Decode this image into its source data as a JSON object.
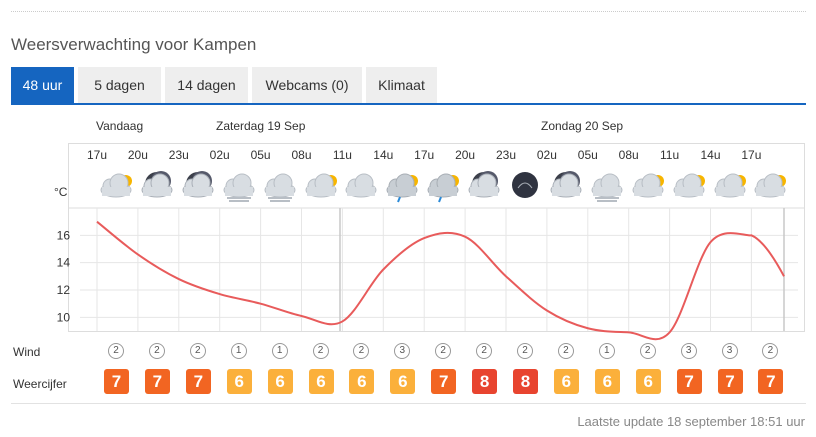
{
  "title": "Weersverwachting voor Kampen",
  "tabs": [
    {
      "label": "48 uur",
      "active": true
    },
    {
      "label": "5 dagen",
      "active": false
    },
    {
      "label": "14 dagen",
      "active": false
    },
    {
      "label": "Webcams (0)",
      "active": false
    },
    {
      "label": "Klimaat",
      "active": false
    }
  ],
  "days": [
    "Vandaag",
    "Zaterdag 19 Sep",
    "Zondag 20 Sep"
  ],
  "unit": "°C",
  "wind_label": "Wind",
  "score_label": "Weercijfer",
  "update": "Laatste update 18 september 18:51 uur",
  "colors": {
    "accent": "#1565c0",
    "line": "#e85b5b",
    "score_orange": "#f26522",
    "score_yellow": "#fbb03b",
    "score_red": "#e8442f"
  },
  "hours": [
    {
      "time": "17u",
      "icon": "partly-cloudy-icon",
      "temp": 17.0,
      "wind": "2",
      "score": "7",
      "score_color": "#f26522"
    },
    {
      "time": "20u",
      "icon": "cloudy-night-icon",
      "temp": 14.6,
      "wind": "2",
      "score": "7",
      "score_color": "#f26522"
    },
    {
      "time": "23u",
      "icon": "cloudy-night-icon",
      "temp": 12.8,
      "wind": "2",
      "score": "7",
      "score_color": "#f26522"
    },
    {
      "time": "02u",
      "icon": "fog-icon",
      "temp": 11.7,
      "wind": "1",
      "score": "6",
      "score_color": "#fbb03b"
    },
    {
      "time": "05u",
      "icon": "fog-icon",
      "temp": 11.0,
      "wind": "1",
      "score": "6",
      "score_color": "#fbb03b"
    },
    {
      "time": "08u",
      "icon": "partly-cloudy-icon",
      "temp": 10.1,
      "wind": "2",
      "score": "6",
      "score_color": "#fbb03b"
    },
    {
      "time": "11u",
      "icon": "cloudy-icon",
      "temp": 9.7,
      "wind": "2",
      "score": "6",
      "score_color": "#fbb03b"
    },
    {
      "time": "14u",
      "icon": "rain-sun-icon",
      "temp": 13.5,
      "wind": "3",
      "score": "6",
      "score_color": "#fbb03b"
    },
    {
      "time": "17u",
      "icon": "rain-sun-icon",
      "temp": 15.8,
      "wind": "2",
      "score": "7",
      "score_color": "#f26522"
    },
    {
      "time": "20u",
      "icon": "cloudy-night-icon",
      "temp": 15.9,
      "wind": "2",
      "score": "8",
      "score_color": "#e8442f"
    },
    {
      "time": "23u",
      "icon": "clear-night-icon",
      "temp": 13.0,
      "wind": "2",
      "score": "8",
      "score_color": "#e8442f"
    },
    {
      "time": "02u",
      "icon": "cloudy-night-icon",
      "temp": 10.5,
      "wind": "2",
      "score": "6",
      "score_color": "#fbb03b"
    },
    {
      "time": "05u",
      "icon": "fog-icon",
      "temp": 9.2,
      "wind": "1",
      "score": "6",
      "score_color": "#fbb03b"
    },
    {
      "time": "08u",
      "icon": "partly-cloudy-icon",
      "temp": 8.9,
      "wind": "2",
      "score": "6",
      "score_color": "#fbb03b"
    },
    {
      "time": "11u",
      "icon": "partly-cloudy-icon",
      "temp": 8.9,
      "wind": "3",
      "score": "7",
      "score_color": "#f26522"
    },
    {
      "time": "14u",
      "icon": "partly-cloudy-icon",
      "temp": 15.5,
      "wind": "3",
      "score": "7",
      "score_color": "#f26522"
    },
    {
      "time": "17u",
      "icon": "partly-cloudy-icon",
      "temp": 16.0,
      "wind": "2",
      "score": "7",
      "score_color": "#f26522"
    }
  ],
  "chart_data": {
    "type": "line",
    "x": [
      "17u",
      "20u",
      "23u",
      "02u",
      "05u",
      "08u",
      "11u",
      "14u",
      "17u",
      "20u",
      "23u",
      "02u",
      "05u",
      "08u",
      "11u",
      "14u",
      "17u"
    ],
    "series": [
      {
        "values": [
          17.0,
          14.6,
          12.8,
          11.7,
          11.0,
          10.1,
          9.7,
          13.5,
          15.8,
          15.9,
          13.0,
          10.5,
          9.2,
          8.9,
          8.9,
          15.5,
          16.0
        ]
      }
    ],
    "y_ticks": [
      10,
      12,
      14,
      16
    ],
    "ylim": [
      9,
      18
    ]
  }
}
